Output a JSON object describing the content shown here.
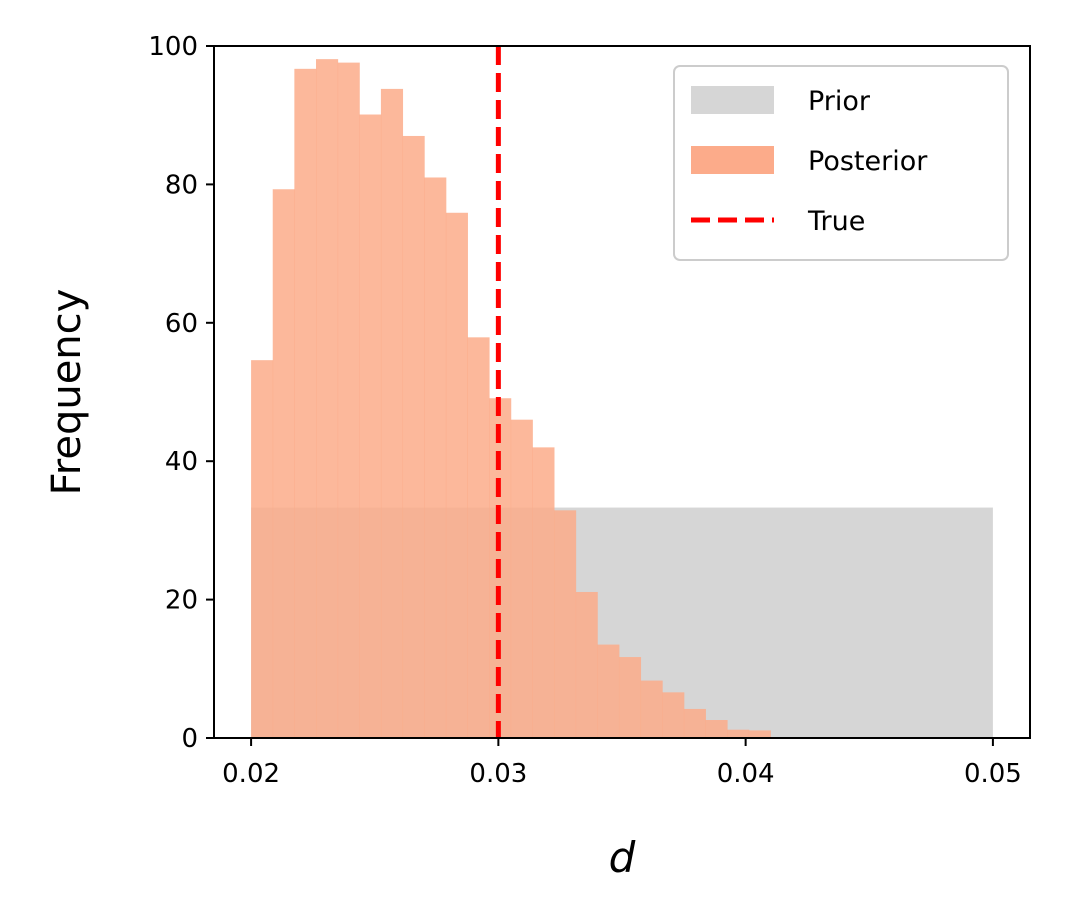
{
  "chart_data": {
    "type": "bar",
    "xlabel": "d",
    "ylabel": "Frequency",
    "xlim": [
      0.0185,
      0.0515
    ],
    "ylim": [
      0,
      100
    ],
    "xticks": [
      0.02,
      0.03,
      0.04,
      0.05
    ],
    "xtick_labels": [
      "0.02",
      "0.03",
      "0.04",
      "0.05"
    ],
    "yticks": [
      0,
      20,
      40,
      60,
      80,
      100
    ],
    "ytick_labels": [
      "0",
      "20",
      "40",
      "60",
      "80",
      "100"
    ],
    "grid": false,
    "legend_position": "top-right",
    "series": [
      {
        "name": "Prior",
        "color": "#d6d6d6",
        "bins": [
          [
            0.02,
            0.05,
            33.3
          ]
        ]
      },
      {
        "name": "Posterior",
        "color": "#fcab8a",
        "bin_start": 0.02,
        "bin_width": 0.000875,
        "values": [
          54.6,
          79.3,
          96.7,
          98.1,
          97.6,
          90.1,
          93.8,
          87.0,
          81.0,
          75.9,
          57.9,
          49.1,
          46.0,
          42.0,
          32.9,
          21.1,
          13.5,
          11.7,
          8.3,
          6.6,
          4.2,
          2.6,
          1.2,
          1.1
        ]
      }
    ],
    "reference_lines": [
      {
        "name": "True",
        "x": 0.03,
        "color": "#ff0000",
        "style": "dashed"
      }
    ],
    "legend": [
      {
        "label": "Prior",
        "kind": "patch",
        "color": "#d6d6d6"
      },
      {
        "label": "Posterior",
        "kind": "patch",
        "color": "#fcab8a"
      },
      {
        "label": "True",
        "kind": "dashed-line",
        "color": "#ff0000"
      }
    ]
  }
}
